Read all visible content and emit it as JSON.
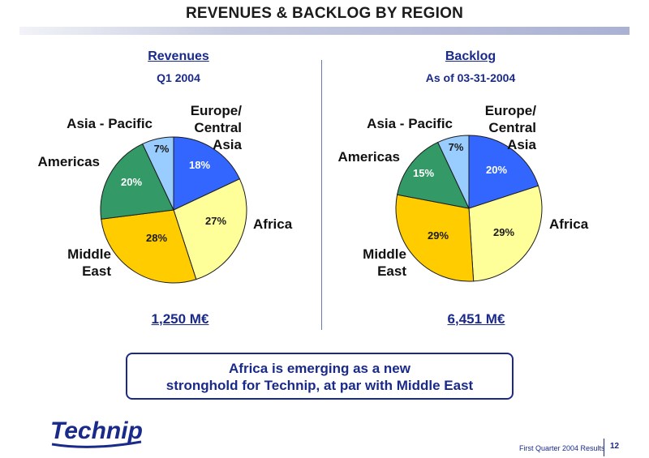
{
  "header": {
    "title": "REVENUES & BACKLOG BY REGION"
  },
  "chart_data": [
    {
      "type": "pie",
      "title": "Revenues",
      "subtitle": "Q1 2004",
      "total": "1,250 M€",
      "categories": [
        "Europe/Central Asia",
        "Africa",
        "Middle East",
        "Americas",
        "Asia - Pacific"
      ],
      "values": [
        18,
        27,
        28,
        20,
        7
      ],
      "value_labels": [
        "18%",
        "27%",
        "28%",
        "20%",
        "7%"
      ],
      "category_labels": [
        [
          "Europe/",
          "Central",
          "Asia"
        ],
        [
          "Africa"
        ],
        [
          "Middle",
          "East"
        ],
        [
          "Americas"
        ],
        [
          "Asia - Pacific"
        ]
      ],
      "colors": [
        "#3366ff",
        "#ffff99",
        "#ffcc00",
        "#339966",
        "#99ccff"
      ]
    },
    {
      "type": "pie",
      "title": "Backlog",
      "subtitle": "As of 03-31-2004",
      "total": "6,451 M€",
      "categories": [
        "Europe/Central Asia",
        "Africa",
        "Middle East",
        "Americas",
        "Asia - Pacific"
      ],
      "values": [
        20,
        29,
        29,
        15,
        7
      ],
      "value_labels": [
        "20%",
        "29%",
        "29%",
        "15%",
        "7%"
      ],
      "category_labels": [
        [
          "Europe/",
          "Central",
          "Asia"
        ],
        [
          "Africa"
        ],
        [
          "Middle",
          "East"
        ],
        [
          "Americas"
        ],
        [
          "Asia - Pacific"
        ]
      ],
      "colors": [
        "#3366ff",
        "#ffff99",
        "#ffcc00",
        "#339966",
        "#99ccff"
      ]
    }
  ],
  "callout": {
    "line1": "Africa is emerging as a new",
    "line2": "stronghold for Technip, at par with Middle East"
  },
  "logo": {
    "text": "Technip",
    "color": "#1a2a8a"
  },
  "footer": {
    "text": "First Quarter 2004 Results",
    "page": "12"
  }
}
